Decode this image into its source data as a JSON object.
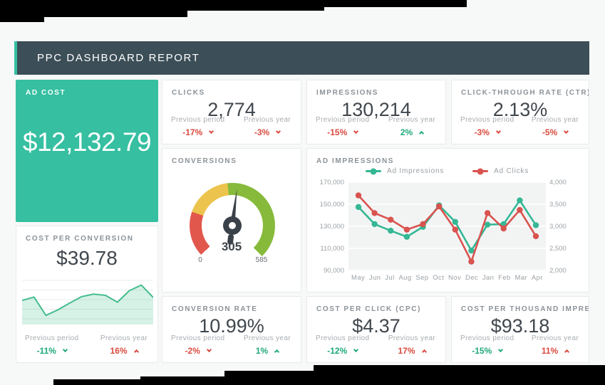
{
  "header": {
    "title": "PPC DASHBOARD REPORT",
    "background": "#3c4e57",
    "accent": "#36bfa1"
  },
  "colors": {
    "positive": "#1fa97c",
    "negative": "#da4a3f",
    "teal_card": "#36bfa1",
    "value_text": "#40474e",
    "title_text": "#8b9298",
    "page_background": "#f7f8f8"
  },
  "cards": {
    "ad_cost": {
      "title": "AD COST",
      "value": "$12,132.79"
    },
    "clicks": {
      "title": "CLICKS",
      "value": "2,774",
      "prev_period_label": "Previous period",
      "prev_period_value": "-17%",
      "prev_year_label": "Previous year",
      "prev_year_value": "-3%"
    },
    "impressions": {
      "title": "IMPRESSIONS",
      "value": "130,214",
      "prev_period_label": "Previous period",
      "prev_period_value": "-15%",
      "prev_year_label": "Previous year",
      "prev_year_value": "2%"
    },
    "ctr": {
      "title": "CLICK-THROUGH RATE (CTR)",
      "value": "2.13%",
      "prev_period_label": "Previous period",
      "prev_period_value": "-3%",
      "prev_year_label": "Previous year",
      "prev_year_value": "-5%"
    },
    "conversions": {
      "title": "CONVERSIONS",
      "value": "305",
      "min": "0",
      "max": "585"
    },
    "ad_impressions": {
      "title": "AD IMPRESSIONS"
    },
    "cost_per_conversion": {
      "title": "COST PER CONVERSION",
      "value": "$39.78",
      "prev_period_label": "Previous period",
      "prev_period_value": "-11%",
      "prev_year_label": "Previous year",
      "prev_year_value": "16%"
    },
    "conversion_rate": {
      "title": "CONVERSION RATE",
      "value": "10.99%",
      "prev_period_label": "Previous period",
      "prev_period_value": "-2%",
      "prev_year_label": "Previous year",
      "prev_year_value": "1%"
    },
    "cpc": {
      "title": "COST PER CLICK (CPC)",
      "value": "$4.37",
      "prev_period_label": "Previous period",
      "prev_period_value": "-12%",
      "prev_year_label": "Previous year",
      "prev_year_value": "17%"
    },
    "cpm": {
      "title": "COST PER THOUSAND IMPRESSIO...",
      "value": "$93.18",
      "prev_period_label": "Previous period",
      "prev_period_value": "-15%",
      "prev_year_label": "Previous year",
      "prev_year_value": "11%"
    }
  },
  "chart_data": [
    {
      "id": "ad_impressions_trend",
      "type": "line",
      "title": "AD IMPRESSIONS",
      "categories": [
        "May",
        "Jun",
        "Jul",
        "Aug",
        "Sep",
        "Oct",
        "Nov",
        "Dec",
        "Jan",
        "Feb",
        "Mar",
        "Apr"
      ],
      "series": [
        {
          "name": "Ad Impressions",
          "axis": "left",
          "color": "#35b794",
          "values": [
            147500,
            132000,
            126000,
            120500,
            129500,
            149000,
            134000,
            108000,
            131500,
            132000,
            153500,
            131000
          ]
        },
        {
          "name": "Ad Clicks",
          "axis": "right",
          "color": "#d9534f",
          "values": [
            3700,
            3300,
            3150,
            2925,
            3050,
            3450,
            2925,
            2200,
            3300,
            2950,
            3370,
            2775
          ]
        }
      ],
      "left_axis": {
        "min": 90000,
        "max": 170000,
        "ticks": [
          "170,000",
          "150,000",
          "130,000",
          "110,000",
          "90,000"
        ]
      },
      "right_axis": {
        "min": 2000,
        "max": 4000,
        "ticks": [
          "4,000",
          "3,500",
          "3,000",
          "2,500",
          "2,000"
        ]
      },
      "legend_position": "top",
      "grid": true
    },
    {
      "id": "conversions_gauge",
      "type": "gauge",
      "title": "CONVERSIONS",
      "value": 305,
      "min": 0,
      "max": 585,
      "start_bearing_deg": -133,
      "sweep_deg": 269,
      "segments": [
        {
          "color": "#e2574c",
          "to_fraction": 0.23
        },
        {
          "color": "#ecc44d",
          "to_fraction": 0.47
        },
        {
          "color": "#87ba3b",
          "to_fraction": 1.0
        }
      ]
    },
    {
      "id": "cost_per_conversion_spark",
      "type": "area",
      "values": [
        53,
        61,
        18,
        31,
        47,
        62,
        68,
        65,
        49,
        76,
        89,
        60
      ],
      "ylim": [
        0,
        100
      ],
      "color": "#45bd8d",
      "fill": "rgba(69,189,141,0.22)",
      "grid": true
    }
  ]
}
